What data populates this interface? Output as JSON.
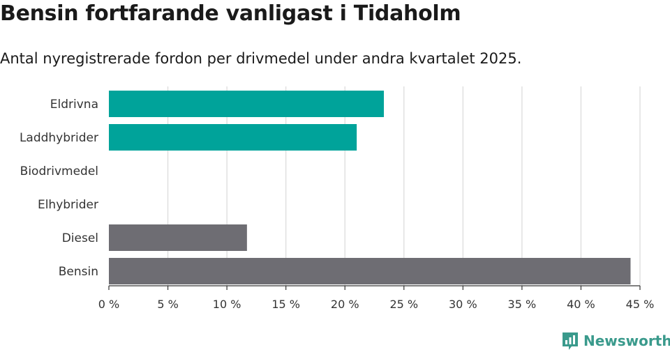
{
  "title": "Bensin fortfarande vanligast i Tidaholm",
  "subtitle": "Antal nyregistrerade fordon per drivmedel under andra kvartalet 2025.",
  "brand": {
    "name": "Newsworthy",
    "icon": "newsworthy-logo-icon"
  },
  "colors": {
    "teal": "#00a39a",
    "gray": "#6e6d73",
    "grid": "#d9d9d9",
    "brand": "#3a9a8c"
  },
  "chart_data": {
    "type": "bar",
    "orientation": "horizontal",
    "categories": [
      "Eldrivna",
      "Laddhybrider",
      "Biodrivmedel",
      "Elhybrider",
      "Diesel",
      "Bensin"
    ],
    "values": [
      23.3,
      21.0,
      0,
      0,
      11.7,
      44.2
    ],
    "bar_colors": [
      "#00a39a",
      "#00a39a",
      "#00a39a",
      "#00a39a",
      "#6e6d73",
      "#6e6d73"
    ],
    "xlim": [
      0,
      45
    ],
    "xticks": [
      0,
      5,
      10,
      15,
      20,
      25,
      30,
      35,
      40,
      45
    ],
    "xtick_labels": [
      "0 %",
      "5 %",
      "10 %",
      "15 %",
      "20 %",
      "25 %",
      "30 %",
      "35 %",
      "40 %",
      "45 %"
    ],
    "grid": true,
    "legend": "none"
  }
}
